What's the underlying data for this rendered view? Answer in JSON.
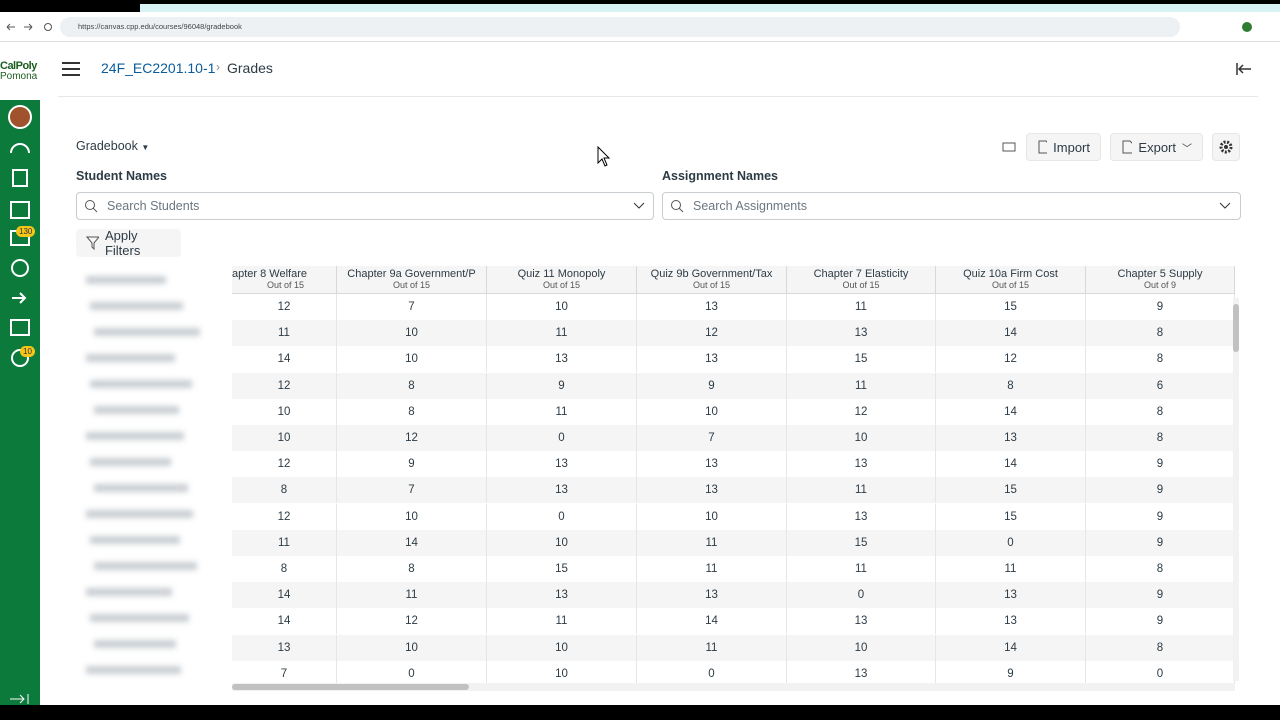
{
  "browser": {
    "url": "https://canvas.cpp.edu/courses/96048/gradebook"
  },
  "logo": {
    "line1": "CalPoly",
    "line2": "Pomona"
  },
  "sidebar": {
    "badges": [
      "130",
      "10"
    ]
  },
  "header": {
    "course": "24F_EC2201.10-1",
    "page": "Grades"
  },
  "toolbar": {
    "view": "Gradebook",
    "import": "Import",
    "export": "Export"
  },
  "filters": {
    "student_label": "Student Names",
    "student_placeholder": "Search Students",
    "assignment_label": "Assignment Names",
    "assignment_placeholder": "Search Assignments",
    "apply": "Apply Filters"
  },
  "table": {
    "columns": [
      {
        "name": "apter 8 Welfare",
        "points": "Out of 15"
      },
      {
        "name": "Chapter 9a Government/P",
        "points": "Out of 15"
      },
      {
        "name": "Quiz 11 Monopoly",
        "points": "Out of 15"
      },
      {
        "name": "Quiz 9b Government/Tax",
        "points": "Out of 15"
      },
      {
        "name": "Chapter 7 Elasticity",
        "points": "Out of 15"
      },
      {
        "name": "Quiz 10a Firm Cost",
        "points": "Out of 15"
      },
      {
        "name": "Chapter 5 Supply",
        "points": "Out of 9"
      }
    ],
    "rows": [
      [
        12,
        7,
        10,
        13,
        11,
        15,
        9
      ],
      [
        11,
        10,
        11,
        12,
        13,
        14,
        8
      ],
      [
        14,
        10,
        13,
        13,
        15,
        12,
        8
      ],
      [
        12,
        8,
        9,
        9,
        11,
        8,
        6
      ],
      [
        10,
        8,
        11,
        10,
        12,
        14,
        8
      ],
      [
        10,
        12,
        0,
        7,
        10,
        13,
        8
      ],
      [
        12,
        9,
        13,
        13,
        13,
        14,
        9
      ],
      [
        8,
        7,
        13,
        13,
        11,
        15,
        9
      ],
      [
        12,
        10,
        0,
        10,
        13,
        15,
        9
      ],
      [
        11,
        14,
        10,
        11,
        15,
        0,
        9
      ],
      [
        8,
        8,
        15,
        11,
        11,
        11,
        8
      ],
      [
        14,
        11,
        13,
        13,
        0,
        13,
        9
      ],
      [
        14,
        12,
        11,
        14,
        13,
        13,
        9
      ],
      [
        13,
        10,
        10,
        11,
        10,
        14,
        8
      ],
      [
        7,
        0,
        10,
        0,
        13,
        9,
        0
      ]
    ]
  }
}
